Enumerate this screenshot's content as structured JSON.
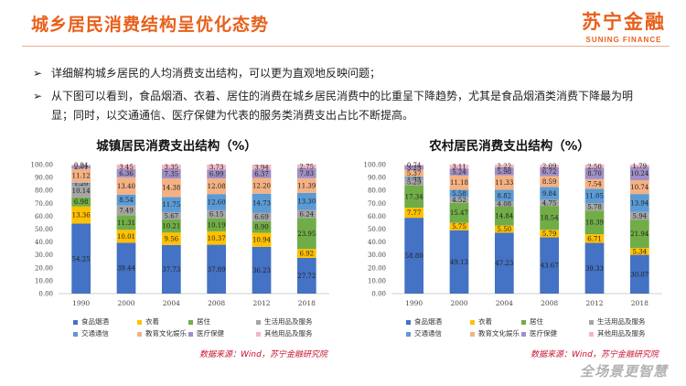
{
  "header": {
    "title": "城乡居民消费结构呈优化态势",
    "logo_cn": "苏宁金融",
    "logo_en": "SUNING FINANCE"
  },
  "bullets": [
    "详细解构城乡居民的人均消费支出结构，可以更为直观地反映问题；",
    "从下图可以看到，食品烟酒、衣着、居住的消费在城乡居民消费中的比重呈下降趋势，尤其是食品烟酒类消费下降最为明显；同时，以交通通信、医疗保健为代表的服务类消费支出占比不断提高。"
  ],
  "footer": {
    "source_left": "数据来源：Wind，苏宁金融研究院",
    "source_right": "数据来源：Wind，苏宁金融研究院",
    "slogan": "全场景更智慧"
  },
  "colors": {
    "accent": "#e8601c",
    "source": "#c8102e",
    "series": [
      "#4472c4",
      "#ffc000",
      "#70ad47",
      "#a5a5a5",
      "#5b9bd5",
      "#f4b183",
      "#9e8fc6",
      "#f4b6c2"
    ]
  },
  "chart_data": [
    {
      "type": "bar",
      "stacked": true,
      "title": "城镇居民消费支出结构（%）",
      "categories": [
        "1990",
        "2000",
        "2004",
        "2008",
        "2012",
        "2018"
      ],
      "ylim": [
        0,
        100
      ],
      "yticks": [
        "0.00",
        "10.00",
        "20.00",
        "30.00",
        "40.00",
        "50.00",
        "60.00",
        "70.00",
        "80.00",
        "90.00",
        "100.00"
      ],
      "legend_position": "bottom",
      "series": [
        {
          "name": "食品烟酒",
          "values": [
            54.25,
            39.44,
            37.73,
            37.89,
            36.23,
            27.72
          ]
        },
        {
          "name": "衣着",
          "values": [
            13.36,
            10.01,
            9.56,
            10.37,
            10.94,
            6.92
          ]
        },
        {
          "name": "居住",
          "values": [
            6.98,
            11.31,
            10.21,
            10.19,
            8.9,
            23.95
          ]
        },
        {
          "name": "生活用品及服务",
          "values": [
            10.14,
            7.49,
            5.67,
            6.15,
            6.69,
            6.24
          ]
        },
        {
          "name": "交通通信",
          "values": [
            1.2,
            8.54,
            11.75,
            12.6,
            14.73,
            13.3
          ]
        },
        {
          "name": "教育文化娱乐",
          "values": [
            11.12,
            13.4,
            14.38,
            12.08,
            12.2,
            11.39
          ]
        },
        {
          "name": "医疗保健",
          "values": [
            2.01,
            6.36,
            7.35,
            6.99,
            6.37,
            7.83
          ]
        },
        {
          "name": "其他用品及服务",
          "values": [
            0.94,
            3.45,
            3.35,
            3.73,
            3.94,
            2.75
          ]
        }
      ]
    },
    {
      "type": "bar",
      "stacked": true,
      "title": "农村居民消费支出结构（%）",
      "categories": [
        "1990",
        "2000",
        "2004",
        "2008",
        "2012",
        "2018"
      ],
      "ylim": [
        0,
        100
      ],
      "yticks": [
        "0.00",
        "10.00",
        "20.00",
        "30.00",
        "40.00",
        "50.00",
        "60.00",
        "70.00",
        "80.00",
        "90.00",
        "100.00"
      ],
      "legend_position": "bottom",
      "series": [
        {
          "name": "食品烟酒",
          "values": [
            58.8,
            49.13,
            47.23,
            43.67,
            39.33,
            30.07
          ]
        },
        {
          "name": "衣着",
          "values": [
            7.77,
            5.75,
            5.5,
            5.79,
            6.71,
            5.34
          ]
        },
        {
          "name": "居住",
          "values": [
            17.34,
            15.47,
            14.84,
            18.54,
            18.39,
            21.94
          ]
        },
        {
          "name": "生活用品及服务",
          "values": [
            5.29,
            4.52,
            4.08,
            4.75,
            5.78,
            5.94
          ]
        },
        {
          "name": "交通通信",
          "values": [
            1.44,
            5.58,
            8.82,
            9.84,
            11.05,
            13.94
          ]
        },
        {
          "name": "教育文化娱乐",
          "values": [
            5.37,
            11.18,
            11.33,
            8.59,
            7.54,
            10.74
          ]
        },
        {
          "name": "医疗保健",
          "values": [
            3.25,
            5.24,
            5.98,
            6.72,
            8.7,
            10.24
          ]
        },
        {
          "name": "其他用品及服务",
          "values": [
            0.74,
            3.11,
            2.22,
            2.09,
            2.5,
            1.79
          ]
        }
      ]
    }
  ]
}
